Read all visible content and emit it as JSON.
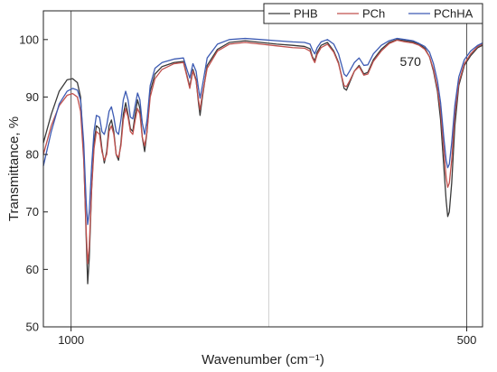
{
  "chart_data": {
    "type": "line",
    "title": "",
    "xlabel": "Wavenumber (cm⁻¹)",
    "ylabel": "Transmittance, %",
    "xlim": [
      1035,
      480
    ],
    "x_reversed": true,
    "ylim": [
      50,
      105
    ],
    "x_ticks": [
      1000,
      500
    ],
    "x_tick_labels": [
      "1000",
      "500"
    ],
    "y_ticks": [
      50,
      60,
      70,
      80,
      90,
      100
    ],
    "y_tick_labels": [
      "50",
      "60",
      "70",
      "80",
      "90",
      "100"
    ],
    "grid": false,
    "legend": "top-right",
    "reference_lines": [
      1000,
      750,
      500
    ],
    "annotations": [
      {
        "text": "570",
        "x": 573,
        "y": 96.2
      }
    ],
    "series": [
      {
        "name": "PHB",
        "color": "#3a3a3a",
        "points": [
          [
            1035,
            82
          ],
          [
            1025,
            87
          ],
          [
            1015,
            91
          ],
          [
            1005,
            93
          ],
          [
            998,
            93.2
          ],
          [
            992,
            92.5
          ],
          [
            988,
            90
          ],
          [
            984,
            80
          ],
          [
            981,
            66
          ],
          [
            979,
            57.5
          ],
          [
            977,
            62
          ],
          [
            974,
            74
          ],
          [
            971,
            82
          ],
          [
            968,
            85
          ],
          [
            964,
            84.5
          ],
          [
            961,
            81
          ],
          [
            958,
            78.5
          ],
          [
            955,
            80.5
          ],
          [
            952,
            85
          ],
          [
            949,
            86
          ],
          [
            946,
            84
          ],
          [
            943,
            80
          ],
          [
            940,
            79
          ],
          [
            937,
            82
          ],
          [
            934,
            87
          ],
          [
            931,
            89
          ],
          [
            928,
            87
          ],
          [
            925,
            84.5
          ],
          [
            922,
            84
          ],
          [
            919,
            87
          ],
          [
            916,
            89.5
          ],
          [
            913,
            88
          ],
          [
            910,
            83
          ],
          [
            907,
            80.5
          ],
          [
            904,
            84
          ],
          [
            900,
            91
          ],
          [
            894,
            94
          ],
          [
            885,
            95.3
          ],
          [
            870,
            96
          ],
          [
            858,
            96.2
          ],
          [
            854,
            94
          ],
          [
            850,
            91.8
          ],
          [
            846,
            94.8
          ],
          [
            842,
            93
          ],
          [
            839,
            89
          ],
          [
            837,
            86.8
          ],
          [
            834,
            90
          ],
          [
            828,
            95.5
          ],
          [
            815,
            98.3
          ],
          [
            800,
            99.5
          ],
          [
            780,
            99.8
          ],
          [
            760,
            99.5
          ],
          [
            740,
            99.2
          ],
          [
            720,
            99
          ],
          [
            705,
            98.8
          ],
          [
            698,
            98.4
          ],
          [
            695,
            97
          ],
          [
            692,
            96.3
          ],
          [
            689,
            97.8
          ],
          [
            684,
            99
          ],
          [
            676,
            99.5
          ],
          [
            668,
            98
          ],
          [
            662,
            96
          ],
          [
            658,
            93.5
          ],
          [
            655,
            91.5
          ],
          [
            652,
            91.2
          ],
          [
            648,
            92.5
          ],
          [
            642,
            94.5
          ],
          [
            636,
            95.5
          ],
          [
            630,
            94
          ],
          [
            625,
            94.3
          ],
          [
            618,
            96.5
          ],
          [
            608,
            98.3
          ],
          [
            598,
            99.5
          ],
          [
            588,
            100
          ],
          [
            578,
            99.8
          ],
          [
            568,
            99.6
          ],
          [
            560,
            99.2
          ],
          [
            553,
            98.5
          ],
          [
            547,
            97
          ],
          [
            542,
            94.5
          ],
          [
            537,
            91
          ],
          [
            533,
            86
          ],
          [
            529,
            78
          ],
          [
            526,
            72
          ],
          [
            524,
            69.2
          ],
          [
            522,
            70
          ],
          [
            519,
            75
          ],
          [
            515,
            85
          ],
          [
            510,
            92
          ],
          [
            503,
            95.5
          ],
          [
            495,
            97.2
          ],
          [
            486,
            98.6
          ],
          [
            480,
            99
          ]
        ]
      },
      {
        "name": "PCh",
        "color": "#c0504d",
        "points": [
          [
            1035,
            80
          ],
          [
            1025,
            85
          ],
          [
            1015,
            88.5
          ],
          [
            1005,
            90.3
          ],
          [
            998,
            90.6
          ],
          [
            992,
            90
          ],
          [
            988,
            87.5
          ],
          [
            984,
            79
          ],
          [
            981,
            67
          ],
          [
            979,
            61
          ],
          [
            977,
            64
          ],
          [
            974,
            74
          ],
          [
            971,
            81
          ],
          [
            968,
            84
          ],
          [
            964,
            83.5
          ],
          [
            961,
            80.5
          ],
          [
            958,
            79
          ],
          [
            955,
            80
          ],
          [
            952,
            84
          ],
          [
            949,
            85
          ],
          [
            946,
            83.5
          ],
          [
            943,
            80
          ],
          [
            940,
            79.5
          ],
          [
            937,
            81.5
          ],
          [
            934,
            86
          ],
          [
            931,
            88
          ],
          [
            928,
            86.5
          ],
          [
            925,
            84
          ],
          [
            922,
            83.5
          ],
          [
            919,
            86
          ],
          [
            916,
            88
          ],
          [
            913,
            87
          ],
          [
            910,
            83
          ],
          [
            907,
            81.5
          ],
          [
            904,
            84
          ],
          [
            900,
            90
          ],
          [
            894,
            93.2
          ],
          [
            885,
            94.8
          ],
          [
            870,
            95.8
          ],
          [
            858,
            96
          ],
          [
            854,
            93.8
          ],
          [
            850,
            91.5
          ],
          [
            846,
            94.5
          ],
          [
            842,
            92.8
          ],
          [
            839,
            89.5
          ],
          [
            837,
            87.8
          ],
          [
            834,
            90.5
          ],
          [
            828,
            95
          ],
          [
            815,
            98
          ],
          [
            800,
            99.2
          ],
          [
            780,
            99.5
          ],
          [
            760,
            99.2
          ],
          [
            740,
            98.9
          ],
          [
            720,
            98.6
          ],
          [
            705,
            98.5
          ],
          [
            698,
            98
          ],
          [
            695,
            96.8
          ],
          [
            692,
            96
          ],
          [
            689,
            97.4
          ],
          [
            684,
            98.6
          ],
          [
            676,
            99.2
          ],
          [
            668,
            97.8
          ],
          [
            662,
            95.8
          ],
          [
            658,
            93.6
          ],
          [
            655,
            92
          ],
          [
            652,
            91.8
          ],
          [
            648,
            92.8
          ],
          [
            642,
            94.5
          ],
          [
            636,
            95.3
          ],
          [
            630,
            93.8
          ],
          [
            625,
            94
          ],
          [
            618,
            96.2
          ],
          [
            608,
            98
          ],
          [
            598,
            99.3
          ],
          [
            588,
            99.9
          ],
          [
            578,
            99.6
          ],
          [
            568,
            99.4
          ],
          [
            560,
            99
          ],
          [
            553,
            98.3
          ],
          [
            547,
            97
          ],
          [
            542,
            94.8
          ],
          [
            537,
            91.5
          ],
          [
            533,
            87.5
          ],
          [
            529,
            81
          ],
          [
            526,
            76
          ],
          [
            524,
            74.3
          ],
          [
            522,
            75
          ],
          [
            519,
            79
          ],
          [
            515,
            87
          ],
          [
            510,
            92.5
          ],
          [
            503,
            95.8
          ],
          [
            495,
            97.5
          ],
          [
            486,
            98.8
          ],
          [
            480,
            99.2
          ]
        ]
      },
      {
        "name": "PChHA",
        "color": "#3d5bb3",
        "points": [
          [
            1035,
            78
          ],
          [
            1025,
            84
          ],
          [
            1015,
            88.8
          ],
          [
            1005,
            91
          ],
          [
            998,
            91.5
          ],
          [
            992,
            91.2
          ],
          [
            988,
            89.5
          ],
          [
            984,
            82
          ],
          [
            981,
            72
          ],
          [
            979,
            67.8
          ],
          [
            977,
            70
          ],
          [
            974,
            78
          ],
          [
            971,
            84
          ],
          [
            968,
            86.8
          ],
          [
            964,
            86.5
          ],
          [
            961,
            84
          ],
          [
            958,
            83.5
          ],
          [
            955,
            85
          ],
          [
            952,
            87.5
          ],
          [
            949,
            88.3
          ],
          [
            946,
            86.5
          ],
          [
            943,
            84
          ],
          [
            940,
            83.5
          ],
          [
            937,
            86
          ],
          [
            934,
            89.5
          ],
          [
            931,
            91
          ],
          [
            928,
            89.5
          ],
          [
            925,
            86.5
          ],
          [
            922,
            86.2
          ],
          [
            919,
            88.5
          ],
          [
            916,
            90.7
          ],
          [
            913,
            89.5
          ],
          [
            910,
            85.5
          ],
          [
            907,
            83.5
          ],
          [
            904,
            86
          ],
          [
            900,
            92
          ],
          [
            894,
            95
          ],
          [
            885,
            96
          ],
          [
            870,
            96.6
          ],
          [
            858,
            96.8
          ],
          [
            854,
            95
          ],
          [
            850,
            93.3
          ],
          [
            846,
            95.8
          ],
          [
            842,
            94.5
          ],
          [
            839,
            91.5
          ],
          [
            837,
            89.8
          ],
          [
            834,
            92
          ],
          [
            828,
            96.8
          ],
          [
            815,
            99.2
          ],
          [
            800,
            100
          ],
          [
            780,
            100.2
          ],
          [
            760,
            100
          ],
          [
            740,
            99.8
          ],
          [
            720,
            99.6
          ],
          [
            705,
            99.5
          ],
          [
            698,
            99.2
          ],
          [
            695,
            98.2
          ],
          [
            692,
            97.5
          ],
          [
            689,
            98.6
          ],
          [
            684,
            99.6
          ],
          [
            676,
            100
          ],
          [
            668,
            99.2
          ],
          [
            662,
            97.5
          ],
          [
            658,
            95.5
          ],
          [
            655,
            94
          ],
          [
            652,
            93.6
          ],
          [
            648,
            94.5
          ],
          [
            642,
            96
          ],
          [
            636,
            96.8
          ],
          [
            630,
            95.5
          ],
          [
            625,
            95.6
          ],
          [
            618,
            97.5
          ],
          [
            608,
            99
          ],
          [
            598,
            99.8
          ],
          [
            588,
            100.2
          ],
          [
            578,
            100
          ],
          [
            568,
            99.8
          ],
          [
            560,
            99.3
          ],
          [
            553,
            98.8
          ],
          [
            547,
            97.8
          ],
          [
            542,
            95.8
          ],
          [
            537,
            92.8
          ],
          [
            533,
            89
          ],
          [
            529,
            83
          ],
          [
            526,
            79
          ],
          [
            524,
            77.7
          ],
          [
            522,
            78.3
          ],
          [
            519,
            82
          ],
          [
            515,
            88.5
          ],
          [
            510,
            93.5
          ],
          [
            503,
            96.5
          ],
          [
            495,
            98
          ],
          [
            486,
            99
          ],
          [
            480,
            99.4
          ]
        ]
      }
    ]
  }
}
